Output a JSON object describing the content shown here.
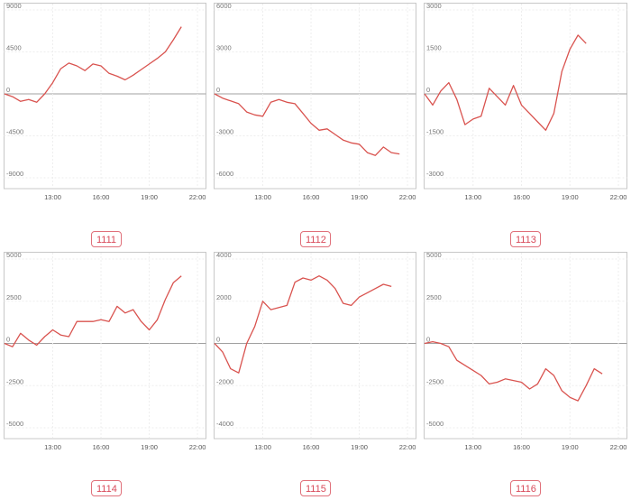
{
  "chart_data": [
    {
      "type": "line",
      "title": "1111",
      "x": [
        "10:00",
        "10:30",
        "11:00",
        "11:30",
        "12:00",
        "12:30",
        "13:00",
        "13:30",
        "14:00",
        "14:30",
        "15:00",
        "15:30",
        "16:00",
        "16:30",
        "17:00",
        "17:30",
        "18:00",
        "18:30",
        "19:00",
        "19:30",
        "20:00",
        "20:30",
        "21:00",
        "21:30",
        "22:00",
        "22:30"
      ],
      "xticks": [
        "13:00",
        "16:00",
        "19:00",
        "22:00"
      ],
      "yticks": [
        9000,
        4500,
        0,
        -4500,
        -9000
      ],
      "ytick_labels": [
        "9000",
        "4500",
        "0",
        "-4500",
        "-9000"
      ],
      "ylim": [
        -9000,
        9000
      ],
      "values": [
        0,
        -300,
        -800,
        -600,
        -900,
        0,
        1200,
        2700,
        3300,
        3000,
        2500,
        3200,
        3000,
        2200,
        1900,
        1500,
        2000,
        2600,
        3200,
        3800,
        4500,
        5800,
        7200,
        null,
        null,
        null
      ]
    },
    {
      "type": "line",
      "title": "1112",
      "x": [
        "10:00",
        "10:30",
        "11:00",
        "11:30",
        "12:00",
        "12:30",
        "13:00",
        "13:30",
        "14:00",
        "14:30",
        "15:00",
        "15:30",
        "16:00",
        "16:30",
        "17:00",
        "17:30",
        "18:00",
        "18:30",
        "19:00",
        "19:30",
        "20:00",
        "20:30",
        "21:00",
        "21:30",
        "22:00",
        "22:30"
      ],
      "xticks": [
        "13:00",
        "16:00",
        "19:00",
        "22:00"
      ],
      "yticks": [
        6000,
        3000,
        0,
        -3000,
        -6000
      ],
      "ytick_labels": [
        "6000",
        "3000",
        "0",
        "-3000",
        "-6000"
      ],
      "ylim": [
        -6000,
        6000
      ],
      "values": [
        0,
        -300,
        -500,
        -700,
        -1300,
        -1500,
        -1600,
        -600,
        -400,
        -600,
        -700,
        -1400,
        -2100,
        -2600,
        -2500,
        -2900,
        -3300,
        -3500,
        -3600,
        -4200,
        -4400,
        -3800,
        -4200,
        -4300,
        null,
        null
      ]
    },
    {
      "type": "line",
      "title": "1113",
      "x": [
        "10:00",
        "10:30",
        "11:00",
        "11:30",
        "12:00",
        "12:30",
        "13:00",
        "13:30",
        "14:00",
        "14:30",
        "15:00",
        "15:30",
        "16:00",
        "16:30",
        "17:00",
        "17:30",
        "18:00",
        "18:30",
        "19:00",
        "19:30",
        "20:00",
        "20:30",
        "21:00",
        "21:30",
        "22:00",
        "22:30"
      ],
      "xticks": [
        "13:00",
        "16:00",
        "19:00",
        "22:00"
      ],
      "yticks": [
        3000,
        1500,
        0,
        -1500,
        -3000
      ],
      "ytick_labels": [
        "3000",
        "1500",
        "0",
        "-1500",
        "-3000"
      ],
      "ylim": [
        -3000,
        3000
      ],
      "values": [
        0,
        -400,
        100,
        400,
        -200,
        -1100,
        -900,
        -800,
        200,
        -100,
        -400,
        300,
        -400,
        -700,
        -1000,
        -1300,
        -700,
        800,
        1600,
        2100,
        1800,
        null,
        null,
        null,
        null,
        null
      ]
    },
    {
      "type": "line",
      "title": "1114",
      "x": [
        "10:00",
        "10:30",
        "11:00",
        "11:30",
        "12:00",
        "12:30",
        "13:00",
        "13:30",
        "14:00",
        "14:30",
        "15:00",
        "15:30",
        "16:00",
        "16:30",
        "17:00",
        "17:30",
        "18:00",
        "18:30",
        "19:00",
        "19:30",
        "20:00",
        "20:30",
        "21:00",
        "21:30",
        "22:00",
        "22:30"
      ],
      "xticks": [
        "13:00",
        "16:00",
        "19:00",
        "22:00"
      ],
      "yticks": [
        5000,
        2500,
        0,
        -2500,
        -5000
      ],
      "ytick_labels": [
        "5000",
        "2500",
        "0",
        "-2500",
        "-5000"
      ],
      "ylim": [
        -5000,
        5000
      ],
      "values": [
        0,
        -200,
        600,
        200,
        -100,
        400,
        800,
        500,
        400,
        1300,
        1300,
        1300,
        1400,
        1300,
        2200,
        1800,
        2000,
        1300,
        800,
        1400,
        2600,
        3600,
        4000,
        null,
        null,
        null
      ]
    },
    {
      "type": "line",
      "title": "1115",
      "x": [
        "10:00",
        "10:30",
        "11:00",
        "11:30",
        "12:00",
        "12:30",
        "13:00",
        "13:30",
        "14:00",
        "14:30",
        "15:00",
        "15:30",
        "16:00",
        "16:30",
        "17:00",
        "17:30",
        "18:00",
        "18:30",
        "19:00",
        "19:30",
        "20:00",
        "20:30",
        "21:00",
        "21:30",
        "22:00",
        "22:30"
      ],
      "xticks": [
        "13:00",
        "16:00",
        "19:00",
        "22:00"
      ],
      "yticks": [
        4000,
        2000,
        0,
        -2000,
        -4000
      ],
      "ytick_labels": [
        "4000",
        "2000",
        "0",
        "-2000",
        "-4000"
      ],
      "ylim": [
        -4000,
        4000
      ],
      "values": [
        0,
        -400,
        -1200,
        -1400,
        0,
        800,
        2000,
        1600,
        1700,
        1800,
        2900,
        3100,
        3000,
        3200,
        3000,
        2600,
        1900,
        1800,
        2200,
        2400,
        2600,
        2800,
        2700,
        null,
        null,
        null
      ]
    },
    {
      "type": "line",
      "title": "1116",
      "x": [
        "10:00",
        "10:30",
        "11:00",
        "11:30",
        "12:00",
        "12:30",
        "13:00",
        "13:30",
        "14:00",
        "14:30",
        "15:00",
        "15:30",
        "16:00",
        "16:30",
        "17:00",
        "17:30",
        "18:00",
        "18:30",
        "19:00",
        "19:30",
        "20:00",
        "20:30",
        "21:00",
        "21:30",
        "22:00",
        "22:30"
      ],
      "xticks": [
        "13:00",
        "16:00",
        "19:00",
        "22:00"
      ],
      "yticks": [
        5000,
        2500,
        0,
        -2500,
        -5000
      ],
      "ytick_labels": [
        "5000",
        "2500",
        "0",
        "-2500",
        "-5000"
      ],
      "ylim": [
        -5000,
        5000
      ],
      "values": [
        0,
        100,
        0,
        -200,
        -1000,
        -1300,
        -1600,
        -1900,
        -2400,
        -2300,
        -2100,
        -2200,
        -2300,
        -2700,
        -2400,
        -1500,
        -1900,
        -2800,
        -3200,
        -3400,
        -2500,
        -1500,
        -1800,
        null,
        null,
        null
      ]
    }
  ],
  "colors": {
    "line": "#d9534f",
    "zero_line": "#a0a0a0",
    "frame": "#c8c8c8",
    "label": "#d94a5a"
  }
}
